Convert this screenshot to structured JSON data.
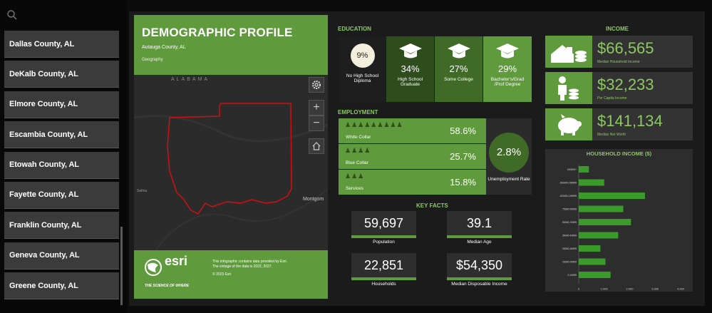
{
  "sidebar": {
    "counties": [
      "Dallas County, AL",
      "DeKalb County, AL",
      "Elmore County, AL",
      "Escambia County, AL",
      "Etowah County, AL",
      "Fayette County, AL",
      "Franklin County, AL",
      "Geneva County, AL",
      "Greene County, AL"
    ]
  },
  "profile": {
    "title": "DEMOGRAPHIC PROFILE",
    "area": "Autauga County, AL",
    "geography": "Geography",
    "map_state": "ALABAMA",
    "map_city1": "Selma",
    "map_city2": "Montgom",
    "esri": "esri",
    "tagline": "THE SCIENCE OF WHERE",
    "note1": "This infographic contains data provided by Esri.",
    "note2": "The vintage of the data is 2022, 2027.",
    "note3": "© 2023 Esri"
  },
  "education": {
    "title": "EDUCATION",
    "items": [
      {
        "value": "9%",
        "label": "No High School Diploma"
      },
      {
        "value": "34%",
        "label": "High School Graduate"
      },
      {
        "value": "27%",
        "label": "Some College"
      },
      {
        "value": "29%",
        "label": "Bachelor's/Grad /Prof Degree"
      }
    ]
  },
  "employment": {
    "title": "EMPLOYMENT",
    "rows": [
      {
        "label": "White Collar",
        "value": "58.6%"
      },
      {
        "label": "Blue Collar",
        "value": "25.7%"
      },
      {
        "label": "Services",
        "value": "15.8%"
      }
    ],
    "unemployment": "2.8%",
    "unemployment_label": "Unemployment Rate"
  },
  "key_facts": {
    "title": "KEY FACTS",
    "items": [
      {
        "value": "59,697",
        "label": "Population"
      },
      {
        "value": "39.1",
        "label": "Median Age"
      },
      {
        "value": "22,851",
        "label": "Households"
      },
      {
        "value": "$54,350",
        "label": "Median Disposable Income"
      }
    ]
  },
  "income": {
    "title": "INCOME",
    "items": [
      {
        "value": "$66,565",
        "label": "Median Household Income"
      },
      {
        "value": "$32,233",
        "label": "Per Capita Income"
      },
      {
        "value": "$141,134",
        "label": "Median Net Worth"
      }
    ]
  },
  "chart_data": {
    "type": "bar",
    "title": "HOUSEHOLD INCOME ($)",
    "categories": [
      "200000+",
      "150000-199999",
      "100000-149999",
      "75000-99999",
      "50000-74999",
      "35000-49999",
      "25000-34999",
      "15000-24999",
      "0-14999"
    ],
    "values": [
      400,
      1000,
      2600,
      1750,
      2050,
      1550,
      850,
      1050,
      1250
    ],
    "xlim": [
      0,
      4000
    ],
    "xticks": [
      "0",
      "1,000",
      "2,000",
      "3,000",
      "4,000"
    ],
    "colors": {
      "bar": "#3a9a2a"
    }
  }
}
